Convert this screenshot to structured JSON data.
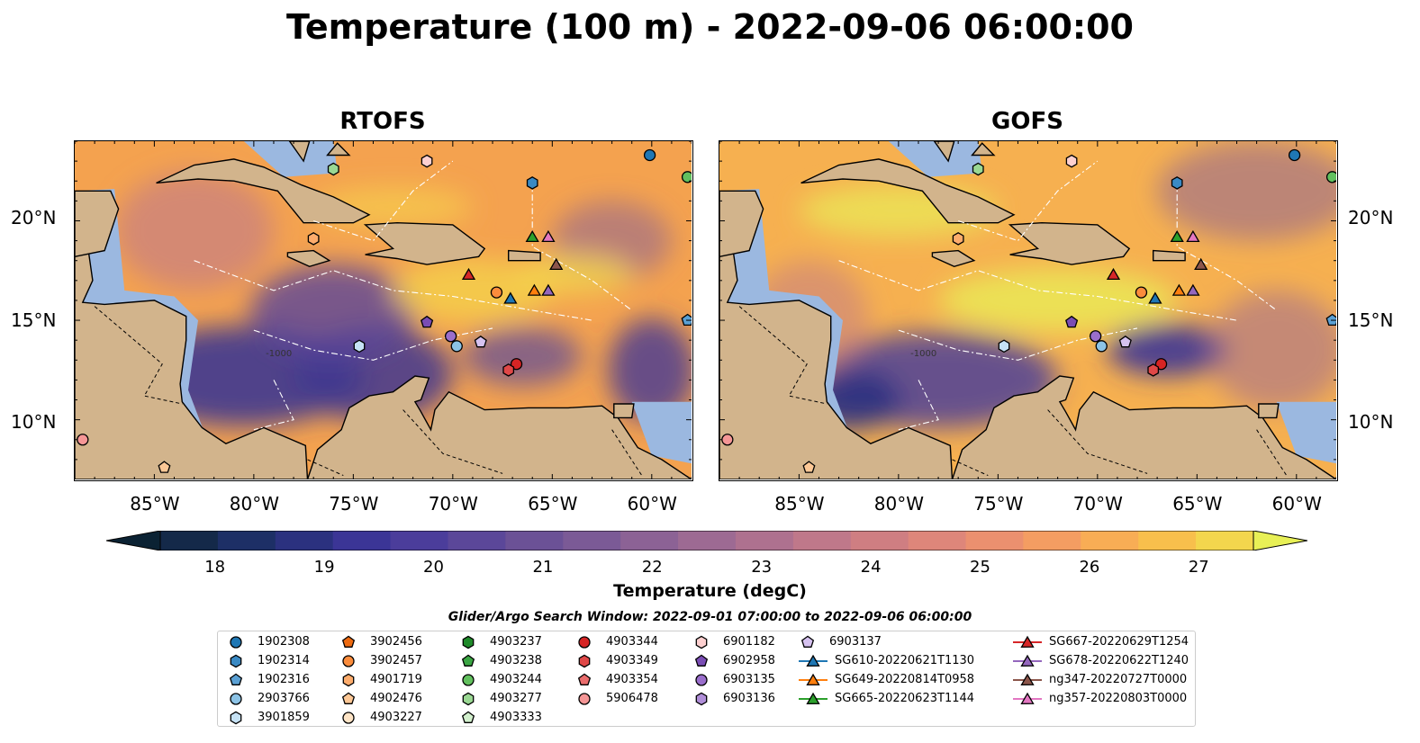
{
  "title": "Temperature (100 m) - 2022-09-06 06:00:00",
  "panels": [
    {
      "title": "RTOFS",
      "contour_label": "-1000"
    },
    {
      "title": "GOFS",
      "contour_label": "-1000"
    }
  ],
  "axes": {
    "lat_labels": [
      "20°N",
      "15°N",
      "10°N"
    ],
    "lon_labels": [
      "85°W",
      "80°W",
      "75°W",
      "70°W",
      "65°W",
      "60°W"
    ]
  },
  "colorbar": {
    "label": "Temperature (degC)",
    "ticks": [
      "18",
      "19",
      "20",
      "21",
      "22",
      "23",
      "24",
      "25",
      "26",
      "27"
    ],
    "min": 17.5,
    "max": 27.5,
    "extend": "both",
    "colormap": "thermal",
    "colors": [
      "#0b2233",
      "#142949",
      "#1d2f66",
      "#2b317f",
      "#3b3596",
      "#4b3d9b",
      "#5b4799",
      "#6b5196",
      "#7b5a96",
      "#8c6295",
      "#9d6a93",
      "#ae718f",
      "#bf788a",
      "#cf7e82",
      "#de867a",
      "#eb906f",
      "#f49d62",
      "#f8ad55",
      "#f8bf4c",
      "#f3d64d",
      "#e8f056"
    ]
  },
  "legend": {
    "title": "Glider/Argo Search Window: 2022-09-01 07:00:00 to 2022-09-06 06:00:00",
    "items": [
      {
        "label": "1902308",
        "marker": "circle",
        "color": "#1f77b4"
      },
      {
        "label": "1902314",
        "marker": "hexagon",
        "color": "#3a8ac4"
      },
      {
        "label": "1902316",
        "marker": "pentagon",
        "color": "#5aa0d4"
      },
      {
        "label": "2903766",
        "marker": "circle",
        "color": "#8cc3e6"
      },
      {
        "label": "3901859",
        "marker": "hexagon",
        "color": "#c6e2f5"
      },
      {
        "label": "3902456",
        "marker": "pentagon",
        "color": "#ee6a10"
      },
      {
        "label": "3902457",
        "marker": "circle",
        "color": "#fb8c3c"
      },
      {
        "label": "4901719",
        "marker": "hexagon",
        "color": "#fdac6c"
      },
      {
        "label": "4902476",
        "marker": "pentagon",
        "color": "#fdc896"
      },
      {
        "label": "4903227",
        "marker": "circle",
        "color": "#fee4c6"
      },
      {
        "label": "4903237",
        "marker": "hexagon",
        "color": "#1f8a2a"
      },
      {
        "label": "4903238",
        "marker": "pentagon",
        "color": "#3aa543"
      },
      {
        "label": "4903244",
        "marker": "circle",
        "color": "#62c05e"
      },
      {
        "label": "4903277",
        "marker": "hexagon",
        "color": "#9ad893"
      },
      {
        "label": "4903333",
        "marker": "pentagon",
        "color": "#d2f0cd"
      },
      {
        "label": "4903344",
        "marker": "circle",
        "color": "#d62424"
      },
      {
        "label": "4903349",
        "marker": "hexagon",
        "color": "#e04848"
      },
      {
        "label": "4903354",
        "marker": "pentagon",
        "color": "#ea6c6c"
      },
      {
        "label": "5906478",
        "marker": "circle",
        "color": "#f59696"
      },
      {
        "label": "6901182",
        "marker": "hexagon",
        "color": "#fdd0d0"
      },
      {
        "label": "6902958",
        "marker": "pentagon",
        "color": "#7a4db4"
      },
      {
        "label": "6903135",
        "marker": "circle",
        "color": "#9a6ecc"
      },
      {
        "label": "6903136",
        "marker": "hexagon",
        "color": "#b08ed8"
      },
      {
        "label": "6903137",
        "marker": "pentagon",
        "color": "#d6c2f0"
      },
      {
        "label": "SG610-20220621T1130",
        "marker": "triangle-line",
        "color": "#1f77b4"
      },
      {
        "label": "SG649-20220814T0958",
        "marker": "triangle-line",
        "color": "#ff7f0e"
      },
      {
        "label": "SG665-20220623T1144",
        "marker": "triangle-line",
        "color": "#2ca02c"
      },
      {
        "label": "SG667-20220629T1254",
        "marker": "triangle-line",
        "color": "#d62728"
      },
      {
        "label": "SG678-20220622T1240",
        "marker": "triangle-line",
        "color": "#9467bd"
      },
      {
        "label": "ng347-20220727T0000",
        "marker": "triangle-line",
        "color": "#8c564b"
      },
      {
        "label": "ng357-20220803T0000",
        "marker": "triangle-line",
        "color": "#e377c2"
      }
    ]
  },
  "markers": [
    {
      "label": "1902308",
      "lon": -60.1,
      "lat": 23.3
    },
    {
      "label": "1902314",
      "lon": -66.0,
      "lat": 21.9
    },
    {
      "label": "1902316",
      "lon": -58.2,
      "lat": 15.0
    },
    {
      "label": "2903766",
      "lon": -69.8,
      "lat": 13.7
    },
    {
      "label": "3901859",
      "lon": -74.7,
      "lat": 13.7
    },
    {
      "label": "3902457",
      "lon": -67.8,
      "lat": 16.4
    },
    {
      "label": "4901719",
      "lon": -77.0,
      "lat": 19.1
    },
    {
      "label": "4902476",
      "lon": -84.5,
      "lat": 7.6
    },
    {
      "label": "4903244",
      "lon": -58.2,
      "lat": 22.2
    },
    {
      "label": "4903277",
      "lon": -76.0,
      "lat": 22.6
    },
    {
      "label": "4903344",
      "lon": -66.8,
      "lat": 12.8
    },
    {
      "label": "4903349",
      "lon": -67.2,
      "lat": 12.5
    },
    {
      "label": "5906478",
      "lon": -88.6,
      "lat": 9.0
    },
    {
      "label": "6901182",
      "lon": -71.3,
      "lat": 23.0
    },
    {
      "label": "6902958",
      "lon": -71.3,
      "lat": 14.9
    },
    {
      "label": "6903135",
      "lon": -70.1,
      "lat": 14.2
    },
    {
      "label": "6903137",
      "lon": -68.6,
      "lat": 13.9
    },
    {
      "label": "SG610-20220621T1130",
      "lon": -67.1,
      "lat": 16.1
    },
    {
      "label": "SG649-20220814T0958",
      "lon": -65.9,
      "lat": 16.5
    },
    {
      "label": "SG665-20220623T1144",
      "lon": -66.0,
      "lat": 19.2
    },
    {
      "label": "SG667-20220629T1254",
      "lon": -69.2,
      "lat": 17.3
    },
    {
      "label": "SG678-20220622T1240",
      "lon": -65.2,
      "lat": 16.5
    },
    {
      "label": "ng347-20220727T0000",
      "lon": -64.8,
      "lat": 17.8
    },
    {
      "label": "ng357-20220803T0000",
      "lon": -65.2,
      "lat": 19.2
    }
  ],
  "extent": {
    "lon": [
      -89,
      -58
    ],
    "lat": [
      7,
      24
    ]
  }
}
